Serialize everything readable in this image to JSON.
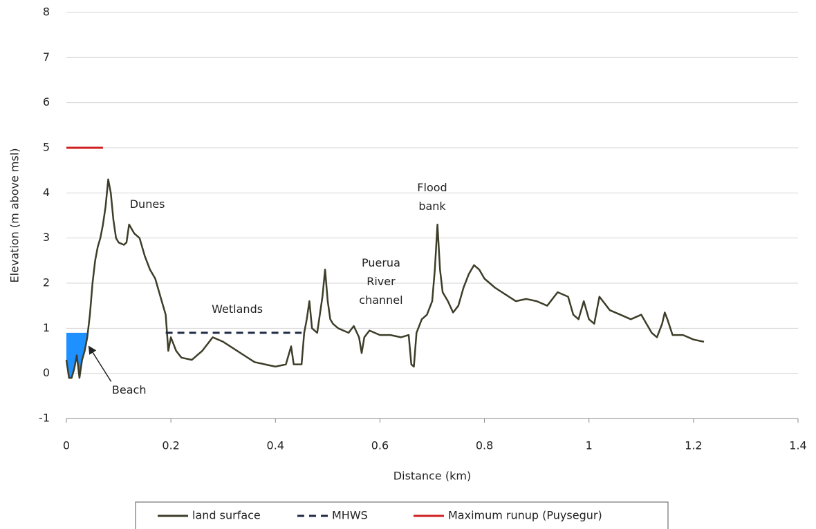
{
  "chart_data": {
    "type": "line",
    "xlabel": "Distance (km)",
    "ylabel": "Elevation (m above msl)",
    "xlim": [
      0,
      1.4
    ],
    "ylim": [
      -1,
      8
    ],
    "xticks": [
      0,
      0.2,
      0.4,
      0.6,
      0.8,
      1,
      1.2,
      1.4
    ],
    "yticks": [
      -1,
      0,
      1,
      2,
      3,
      4,
      5,
      6,
      7,
      8
    ],
    "grid": true,
    "legend": "bottom",
    "series": [
      {
        "name": "land surface",
        "color": "#3d3d29",
        "dash": false,
        "x": [
          0,
          0.005,
          0.01,
          0.015,
          0.02,
          0.025,
          0.03,
          0.035,
          0.04,
          0.045,
          0.05,
          0.055,
          0.06,
          0.065,
          0.07,
          0.075,
          0.08,
          0.085,
          0.09,
          0.095,
          0.1,
          0.11,
          0.115,
          0.12,
          0.13,
          0.14,
          0.15,
          0.16,
          0.17,
          0.18,
          0.19,
          0.195,
          0.2,
          0.21,
          0.22,
          0.24,
          0.26,
          0.28,
          0.3,
          0.32,
          0.34,
          0.36,
          0.38,
          0.4,
          0.42,
          0.43,
          0.435,
          0.45,
          0.455,
          0.46,
          0.465,
          0.47,
          0.48,
          0.485,
          0.49,
          0.495,
          0.5,
          0.505,
          0.51,
          0.52,
          0.53,
          0.54,
          0.55,
          0.56,
          0.565,
          0.57,
          0.58,
          0.6,
          0.62,
          0.64,
          0.655,
          0.66,
          0.665,
          0.67,
          0.68,
          0.69,
          0.7,
          0.705,
          0.71,
          0.715,
          0.72,
          0.73,
          0.74,
          0.75,
          0.76,
          0.77,
          0.78,
          0.79,
          0.8,
          0.82,
          0.84,
          0.86,
          0.88,
          0.9,
          0.92,
          0.94,
          0.96,
          0.97,
          0.98,
          0.99,
          1.0,
          1.01,
          1.02,
          1.04,
          1.06,
          1.08,
          1.1,
          1.12,
          1.13,
          1.14,
          1.145,
          1.15,
          1.16,
          1.18,
          1.2,
          1.22
        ],
        "values": [
          0.3,
          -0.1,
          -0.1,
          0.1,
          0.4,
          -0.1,
          0.3,
          0.5,
          0.8,
          1.3,
          2.0,
          2.5,
          2.8,
          3.0,
          3.3,
          3.7,
          4.3,
          4.0,
          3.4,
          3.0,
          2.9,
          2.85,
          2.9,
          3.3,
          3.1,
          3.0,
          2.6,
          2.3,
          2.1,
          1.7,
          1.3,
          0.5,
          0.8,
          0.5,
          0.35,
          0.3,
          0.5,
          0.8,
          0.7,
          0.55,
          0.4,
          0.25,
          0.2,
          0.15,
          0.2,
          0.6,
          0.2,
          0.2,
          0.9,
          1.2,
          1.6,
          1.0,
          0.9,
          1.3,
          1.7,
          2.3,
          1.6,
          1.2,
          1.1,
          1.0,
          0.95,
          0.9,
          1.05,
          0.8,
          0.45,
          0.8,
          0.95,
          0.85,
          0.85,
          0.8,
          0.85,
          0.2,
          0.15,
          0.9,
          1.2,
          1.3,
          1.6,
          2.3,
          3.3,
          2.3,
          1.8,
          1.6,
          1.35,
          1.5,
          1.9,
          2.2,
          2.4,
          2.3,
          2.1,
          1.9,
          1.75,
          1.6,
          1.65,
          1.6,
          1.5,
          1.8,
          1.7,
          1.3,
          1.2,
          1.6,
          1.2,
          1.1,
          1.7,
          1.4,
          1.3,
          1.2,
          1.3,
          0.9,
          0.8,
          1.1,
          1.35,
          1.2,
          0.85,
          0.85,
          0.75,
          0.7
        ]
      },
      {
        "name": "MHWS",
        "color": "#1f2a44",
        "dash": true,
        "x": [
          0.19,
          0.45
        ],
        "values": [
          0.9,
          0.9
        ]
      },
      {
        "name": "Maximum runup  (Puysegur)",
        "color": "#d02020",
        "dash": false,
        "x": [
          0,
          0.07
        ],
        "values": [
          5,
          5
        ]
      }
    ],
    "area": {
      "color": "#1e90ff",
      "x": [
        0,
        0.042
      ],
      "y": 0.9
    },
    "annotations": [
      {
        "lines": [
          "Dunes"
        ],
        "x": 0.155,
        "y": 3.74
      },
      {
        "lines": [
          "Wetlands"
        ],
        "x": 0.327,
        "y": 1.41
      },
      {
        "lines": [
          "Puerua",
          "River",
          "channel"
        ],
        "x": 0.602,
        "y": 2.02
      },
      {
        "lines": [
          "Flood",
          "bank"
        ],
        "x": 0.7,
        "y": 3.9
      },
      {
        "lines": [
          "Beach"
        ],
        "x": 0.12,
        "y": -0.38,
        "arrow_to": [
          0.043,
          0.6
        ]
      }
    ]
  }
}
